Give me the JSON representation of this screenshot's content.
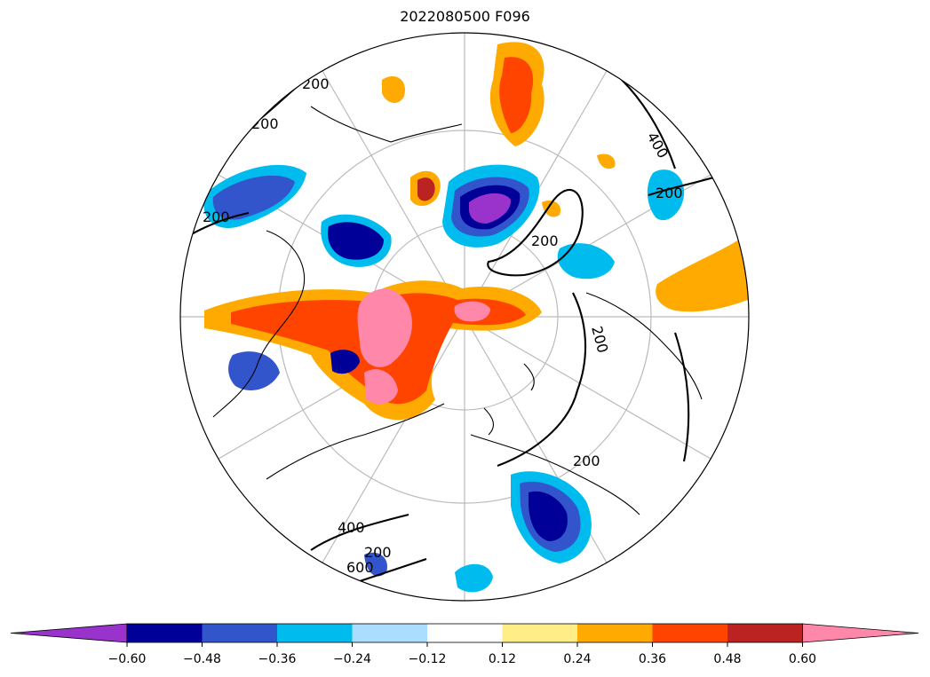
{
  "title": "2022080500 F096",
  "contour_labels": [
    "200",
    "200",
    "200",
    "200",
    "400",
    "200",
    "200",
    "200",
    "200",
    "400",
    "600"
  ],
  "colorbar": {
    "ticks": [
      "−0.60",
      "−0.48",
      "−0.36",
      "−0.24",
      "−0.12",
      "0.12",
      "0.24",
      "0.36",
      "0.48",
      "0.60"
    ],
    "colors": [
      "#9933cc",
      "#000099",
      "#3355cc",
      "#00bbee",
      "#aaddff",
      "#ffffff",
      "#ffee88",
      "#ffaa00",
      "#ff4400",
      "#bb2222",
      "#ff88aa"
    ],
    "extend": "both"
  }
}
